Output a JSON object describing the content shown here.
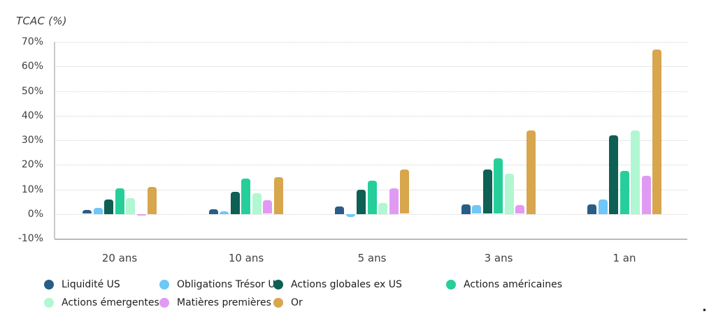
{
  "chart_data": {
    "type": "bar",
    "title": "TCAC (%)",
    "categories": [
      "20 ans",
      "10 ans",
      "5 ans",
      "3 ans",
      "1 an"
    ],
    "series": [
      {
        "name": "Liquidité US",
        "color": "#2a5c88",
        "values": [
          1.5,
          2,
          3,
          4,
          4
        ]
      },
      {
        "name": "Obligations Trésor US",
        "color": "#6ec7f6",
        "values": [
          2.5,
          1,
          -1,
          3.5,
          6
        ]
      },
      {
        "name": "Actions globales ex US",
        "color": "#0d6053",
        "values": [
          6,
          9,
          10,
          18,
          32
        ]
      },
      {
        "name": "Actions américaines",
        "color": "#26cf9a",
        "values": [
          10.5,
          14.5,
          13.5,
          22.5,
          17.5
        ]
      },
      {
        "name": "Actions émergentes",
        "color": "#b1f7d1",
        "values": [
          6.5,
          8.5,
          4.5,
          16.5,
          34
        ]
      },
      {
        "name": "Matières premières",
        "color": "#e09af4",
        "values": [
          -0.5,
          5.5,
          10.5,
          3.5,
          15.5
        ]
      },
      {
        "name": "Or",
        "color": "#d7a64d",
        "values": [
          11,
          15,
          18,
          34,
          67
        ]
      }
    ],
    "ylim": [
      -10,
      70
    ],
    "yticks": [
      {
        "label": "70%",
        "value": 70
      },
      {
        "label": "60%",
        "value": 60
      },
      {
        "label": "50%",
        "value": 50
      },
      {
        "label": "40%",
        "value": 40
      },
      {
        "label": "30%",
        "value": 30
      },
      {
        "label": "20%",
        "value": 20
      },
      {
        "label": "10%",
        "value": 10
      },
      {
        "label": "0%",
        "value": 0
      },
      {
        "label": "-10%",
        "value": -10
      }
    ],
    "grid": "horizontal-dotted",
    "legend_position": "bottom-left-two-rows",
    "colors": {
      "grid": "#d0d0d0",
      "axis": "#c9c9c9",
      "baseline": "#b9b9b9",
      "tick_text": "#3f3f3f",
      "legend_text": "#1d1d1d",
      "background": "#ffffff"
    }
  },
  "footnote_mark": "."
}
